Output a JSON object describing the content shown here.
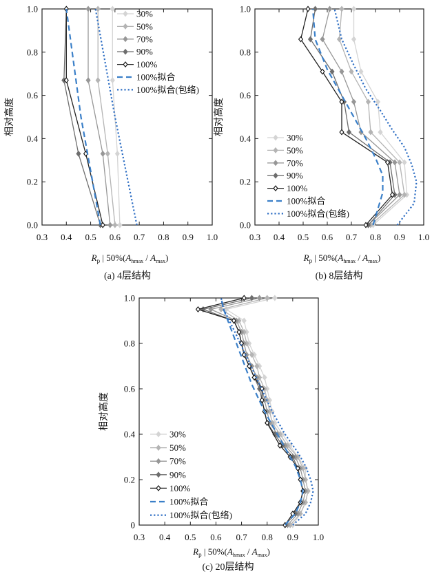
{
  "chart_data": [
    {
      "type": "line",
      "caption": "(a)  4层结构",
      "ylabel": "相对高度",
      "xlim": [
        0.3,
        1.0
      ],
      "ylim": [
        0.0,
        1.0
      ],
      "x_ticks": [
        "0.3",
        "0.4",
        "0.5",
        "0.6",
        "0.7",
        "0.8",
        "0.9",
        "1.0"
      ],
      "y_ticks": [
        "0.0",
        "0.2",
        "0.4",
        "0.6",
        "0.8",
        "1.0"
      ],
      "legend_position": "top-right",
      "series": [
        {
          "name": "30%",
          "color": "#d4d4d4",
          "marker": "diamond",
          "dash": "solid",
          "points": [
            [
              0.62,
              0
            ],
            [
              0.61,
              0.33
            ],
            [
              0.59,
              0.67
            ],
            [
              0.59,
              1.0
            ]
          ]
        },
        {
          "name": "50%",
          "color": "#b4b4b4",
          "marker": "diamond",
          "dash": "solid",
          "points": [
            [
              0.6,
              0
            ],
            [
              0.57,
              0.33
            ],
            [
              0.53,
              0.67
            ],
            [
              0.53,
              1.0
            ]
          ]
        },
        {
          "name": "70%",
          "color": "#979797",
          "marker": "diamond",
          "dash": "solid",
          "points": [
            [
              0.58,
              0
            ],
            [
              0.55,
              0.33
            ],
            [
              0.49,
              0.67
            ],
            [
              0.49,
              1.0
            ]
          ]
        },
        {
          "name": "90%",
          "color": "#6e6e6e",
          "marker": "diamond",
          "dash": "solid",
          "points": [
            [
              0.54,
              0
            ],
            [
              0.45,
              0.33
            ],
            [
              0.39,
              0.67
            ],
            [
              0.4,
              1.0
            ]
          ]
        },
        {
          "name": "100%",
          "color": "#222222",
          "marker": "diamond",
          "dash": "solid",
          "points": [
            [
              0.55,
              0
            ],
            [
              0.48,
              0.33
            ],
            [
              0.4,
              0.67
            ],
            [
              0.4,
              1.0
            ]
          ]
        },
        {
          "name": "100%拟合",
          "color": "#3a7fc8",
          "marker": "none",
          "dash": "dashed",
          "points": [
            [
              0.54,
              0
            ],
            [
              0.46,
              0.5
            ],
            [
              0.4,
              1.0
            ]
          ]
        },
        {
          "name": "100%拟合(包络)",
          "color": "#2f6fc4",
          "marker": "none",
          "dash": "dotted",
          "points": [
            [
              0.69,
              0
            ],
            [
              0.6,
              0.5
            ],
            [
              0.52,
              1.0
            ]
          ]
        }
      ]
    },
    {
      "type": "line",
      "caption": "(b)  8层结构",
      "ylabel": "相对高度",
      "xlim": [
        0.3,
        1.0
      ],
      "ylim": [
        0.0,
        1.0
      ],
      "x_ticks": [
        "0.3",
        "0.4",
        "0.5",
        "0.6",
        "0.7",
        "0.8",
        "0.9",
        "1.0"
      ],
      "y_ticks": [
        "0.0",
        "0.2",
        "0.4",
        "0.6",
        "0.8",
        "1.0"
      ],
      "legend_position": "bottom-left",
      "series": [
        {
          "name": "30%",
          "color": "#d4d4d4",
          "marker": "diamond",
          "dash": "solid",
          "points": [
            [
              0.79,
              0
            ],
            [
              0.93,
              0.14
            ],
            [
              0.92,
              0.29
            ],
            [
              0.82,
              0.43
            ],
            [
              0.81,
              0.57
            ],
            [
              0.74,
              0.71
            ],
            [
              0.71,
              0.86
            ],
            [
              0.71,
              1.0
            ]
          ]
        },
        {
          "name": "50%",
          "color": "#b4b4b4",
          "marker": "diamond",
          "dash": "solid",
          "points": [
            [
              0.78,
              0
            ],
            [
              0.92,
              0.14
            ],
            [
              0.9,
              0.29
            ],
            [
              0.78,
              0.43
            ],
            [
              0.77,
              0.57
            ],
            [
              0.7,
              0.71
            ],
            [
              0.65,
              0.86
            ],
            [
              0.66,
              1.0
            ]
          ]
        },
        {
          "name": "70%",
          "color": "#979797",
          "marker": "diamond",
          "dash": "solid",
          "points": [
            [
              0.77,
              0
            ],
            [
              0.9,
              0.14
            ],
            [
              0.88,
              0.29
            ],
            [
              0.74,
              0.43
            ],
            [
              0.71,
              0.57
            ],
            [
              0.66,
              0.71
            ],
            [
              0.58,
              0.86
            ],
            [
              0.61,
              1.0
            ]
          ]
        },
        {
          "name": "90%",
          "color": "#6e6e6e",
          "marker": "diamond",
          "dash": "solid",
          "points": [
            [
              0.77,
              0
            ],
            [
              0.88,
              0.14
            ],
            [
              0.86,
              0.29
            ],
            [
              0.69,
              0.43
            ],
            [
              0.67,
              0.57
            ],
            [
              0.62,
              0.71
            ],
            [
              0.53,
              0.86
            ],
            [
              0.55,
              1.0
            ]
          ]
        },
        {
          "name": "100%",
          "color": "#222222",
          "marker": "diamond",
          "dash": "solid",
          "points": [
            [
              0.76,
              0
            ],
            [
              0.87,
              0.14
            ],
            [
              0.85,
              0.29
            ],
            [
              0.66,
              0.43
            ],
            [
              0.66,
              0.57
            ],
            [
              0.58,
              0.71
            ],
            [
              0.49,
              0.86
            ],
            [
              0.52,
              1.0
            ]
          ]
        },
        {
          "name": "100%拟合",
          "color": "#3a7fc8",
          "marker": "none",
          "dash": "dashed",
          "points": [
            [
              0.79,
              0
            ],
            [
              0.83,
              0.15
            ],
            [
              0.83,
              0.23
            ],
            [
              0.8,
              0.31
            ],
            [
              0.76,
              0.4
            ],
            [
              0.71,
              0.5
            ],
            [
              0.66,
              0.6
            ],
            [
              0.6,
              0.72
            ],
            [
              0.55,
              0.86
            ],
            [
              0.54,
              1.0
            ]
          ]
        },
        {
          "name": "100%拟合(包络)",
          "color": "#2f6fc4",
          "marker": "none",
          "dash": "dotted",
          "points": [
            [
              0.89,
              0
            ],
            [
              0.96,
              0.1
            ],
            [
              0.97,
              0.2
            ],
            [
              0.95,
              0.28
            ],
            [
              0.92,
              0.36
            ],
            [
              0.87,
              0.44
            ],
            [
              0.82,
              0.53
            ],
            [
              0.76,
              0.63
            ],
            [
              0.71,
              0.74
            ],
            [
              0.66,
              0.86
            ],
            [
              0.63,
              1.0
            ]
          ]
        }
      ]
    },
    {
      "type": "line",
      "caption": "(c)  20层结构",
      "ylabel": "相对高度",
      "xlim": [
        0.3,
        1.0
      ],
      "ylim": [
        0.0,
        1.0
      ],
      "x_ticks": [
        "0.3",
        "0.4",
        "0.5",
        "0.6",
        "0.7",
        "0.8",
        "0.9",
        "1.0"
      ],
      "y_ticks": [
        "0",
        "0.2",
        "0.4",
        "0.6",
        "0.8",
        "1.0"
      ],
      "legend_position": "bottom-left",
      "series": [
        {
          "name": "30%",
          "color": "#d4d4d4",
          "marker": "diamond",
          "dash": "solid",
          "points": [
            [
              0.9,
              0
            ],
            [
              0.93,
              0.05
            ],
            [
              0.95,
              0.1
            ],
            [
              0.96,
              0.15
            ],
            [
              0.95,
              0.2
            ],
            [
              0.95,
              0.25
            ],
            [
              0.92,
              0.3
            ],
            [
              0.89,
              0.35
            ],
            [
              0.86,
              0.4
            ],
            [
              0.83,
              0.45
            ],
            [
              0.82,
              0.5
            ],
            [
              0.81,
              0.55
            ],
            [
              0.8,
              0.6
            ],
            [
              0.79,
              0.65
            ],
            [
              0.77,
              0.7
            ],
            [
              0.75,
              0.75
            ],
            [
              0.73,
              0.8
            ],
            [
              0.72,
              0.85
            ],
            [
              0.71,
              0.9
            ],
            [
              0.64,
              0.95
            ],
            [
              0.83,
              1.0
            ]
          ]
        },
        {
          "name": "50%",
          "color": "#b4b4b4",
          "marker": "diamond",
          "dash": "solid",
          "points": [
            [
              0.89,
              0
            ],
            [
              0.93,
              0.05
            ],
            [
              0.95,
              0.1
            ],
            [
              0.96,
              0.15
            ],
            [
              0.95,
              0.2
            ],
            [
              0.94,
              0.25
            ],
            [
              0.92,
              0.3
            ],
            [
              0.88,
              0.35
            ],
            [
              0.85,
              0.4
            ],
            [
              0.82,
              0.45
            ],
            [
              0.81,
              0.5
            ],
            [
              0.8,
              0.55
            ],
            [
              0.79,
              0.6
            ],
            [
              0.77,
              0.65
            ],
            [
              0.76,
              0.7
            ],
            [
              0.74,
              0.75
            ],
            [
              0.72,
              0.8
            ],
            [
              0.71,
              0.85
            ],
            [
              0.69,
              0.9
            ],
            [
              0.62,
              0.95
            ],
            [
              0.8,
              1.0
            ]
          ]
        },
        {
          "name": "70%",
          "color": "#979797",
          "marker": "diamond",
          "dash": "solid",
          "points": [
            [
              0.88,
              0
            ],
            [
              0.92,
              0.05
            ],
            [
              0.94,
              0.1
            ],
            [
              0.95,
              0.15
            ],
            [
              0.94,
              0.2
            ],
            [
              0.93,
              0.25
            ],
            [
              0.91,
              0.3
            ],
            [
              0.87,
              0.35
            ],
            [
              0.84,
              0.4
            ],
            [
              0.81,
              0.45
            ],
            [
              0.8,
              0.5
            ],
            [
              0.79,
              0.55
            ],
            [
              0.78,
              0.6
            ],
            [
              0.76,
              0.65
            ],
            [
              0.74,
              0.7
            ],
            [
              0.72,
              0.75
            ],
            [
              0.71,
              0.8
            ],
            [
              0.7,
              0.85
            ],
            [
              0.68,
              0.9
            ],
            [
              0.58,
              0.95
            ],
            [
              0.77,
              1.0
            ]
          ]
        },
        {
          "name": "90%",
          "color": "#6e6e6e",
          "marker": "diamond",
          "dash": "solid",
          "points": [
            [
              0.87,
              0
            ],
            [
              0.91,
              0.05
            ],
            [
              0.93,
              0.1
            ],
            [
              0.94,
              0.15
            ],
            [
              0.93,
              0.2
            ],
            [
              0.92,
              0.25
            ],
            [
              0.9,
              0.3
            ],
            [
              0.86,
              0.35
            ],
            [
              0.83,
              0.4
            ],
            [
              0.8,
              0.45
            ],
            [
              0.79,
              0.5
            ],
            [
              0.78,
              0.55
            ],
            [
              0.77,
              0.6
            ],
            [
              0.75,
              0.65
            ],
            [
              0.73,
              0.7
            ],
            [
              0.71,
              0.75
            ],
            [
              0.7,
              0.8
            ],
            [
              0.69,
              0.85
            ],
            [
              0.67,
              0.9
            ],
            [
              0.55,
              0.95
            ],
            [
              0.74,
              1.0
            ]
          ]
        },
        {
          "name": "100%",
          "color": "#222222",
          "marker": "diamond",
          "dash": "solid",
          "points": [
            [
              0.87,
              0
            ],
            [
              0.9,
              0.05
            ],
            [
              0.93,
              0.1
            ],
            [
              0.94,
              0.15
            ],
            [
              0.93,
              0.2
            ],
            [
              0.92,
              0.25
            ],
            [
              0.89,
              0.3
            ],
            [
              0.85,
              0.35
            ],
            [
              0.8,
              0.45
            ],
            [
              0.79,
              0.5
            ],
            [
              0.78,
              0.55
            ],
            [
              0.78,
              0.6
            ],
            [
              0.75,
              0.65
            ],
            [
              0.73,
              0.7
            ],
            [
              0.71,
              0.75
            ],
            [
              0.7,
              0.8
            ],
            [
              0.69,
              0.85
            ],
            [
              0.67,
              0.9
            ],
            [
              0.53,
              0.95
            ],
            [
              0.71,
              1.0
            ]
          ]
        },
        {
          "name": "100%拟合",
          "color": "#3a7fc8",
          "marker": "none",
          "dash": "dashed",
          "points": [
            [
              0.87,
              0
            ],
            [
              0.91,
              0.05
            ],
            [
              0.93,
              0.1
            ],
            [
              0.94,
              0.15
            ],
            [
              0.93,
              0.2
            ],
            [
              0.91,
              0.26
            ],
            [
              0.88,
              0.32
            ],
            [
              0.84,
              0.4
            ],
            [
              0.79,
              0.5
            ],
            [
              0.74,
              0.62
            ],
            [
              0.7,
              0.74
            ],
            [
              0.66,
              0.86
            ],
            [
              0.63,
              0.95
            ],
            [
              0.62,
              1.0
            ]
          ]
        },
        {
          "name": "100%拟合(包络)",
          "color": "#2f6fc4",
          "marker": "none",
          "dash": "dotted",
          "points": [
            [
              0.9,
              0
            ],
            [
              0.95,
              0.05
            ],
            [
              0.97,
              0.1
            ],
            [
              0.98,
              0.15
            ],
            [
              0.97,
              0.2
            ],
            [
              0.95,
              0.26
            ],
            [
              0.92,
              0.32
            ],
            [
              0.87,
              0.4
            ],
            [
              0.82,
              0.5
            ],
            [
              0.77,
              0.62
            ],
            [
              0.72,
              0.74
            ],
            [
              0.67,
              0.86
            ],
            [
              0.63,
              0.95
            ],
            [
              0.62,
              1.0
            ]
          ]
        }
      ]
    }
  ]
}
